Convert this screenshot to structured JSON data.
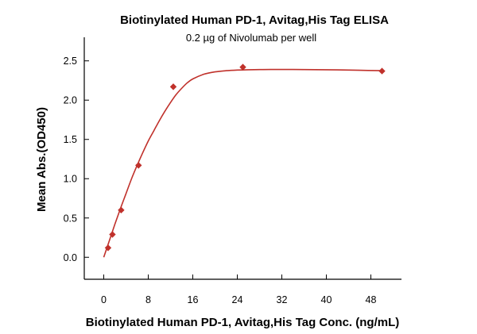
{
  "chart_data": {
    "type": "scatter",
    "title": "Biotinylated Human PD-1, Avitag,His Tag ELISA",
    "subtitle": "0.2 µg of Nivolumab per well",
    "xlabel": "Biotinylated Human PD-1, Avitag,His Tag Conc. (ng/mL)",
    "ylabel": "Mean Abs.(OD450)",
    "xlim": [
      -3.5,
      53.5
    ],
    "ylim": [
      -0.28,
      2.8
    ],
    "x_ticks": [
      0,
      8,
      16,
      24,
      32,
      40,
      48
    ],
    "y_ticks": [
      0.0,
      0.5,
      1.0,
      1.5,
      2.0,
      2.5
    ],
    "x_tick_labels": [
      "0",
      "8",
      "16",
      "24",
      "32",
      "40",
      "48"
    ],
    "y_tick_labels": [
      "0.0",
      "0.5",
      "1.0",
      "1.5",
      "2.0",
      "2.5"
    ],
    "grid": false,
    "marker_color": "#c0312b",
    "line_color": "#c0312b",
    "points": {
      "x": [
        0.78,
        1.56,
        3.13,
        6.25,
        12.5,
        25,
        50
      ],
      "y": [
        0.12,
        0.29,
        0.6,
        1.17,
        2.17,
        2.42,
        2.37
      ]
    },
    "fit_curve": {
      "x": [
        0,
        1,
        2,
        3,
        4,
        5,
        6,
        7,
        8,
        9,
        10,
        11,
        12,
        13,
        14,
        15,
        16,
        18,
        20,
        22,
        24,
        26,
        28,
        30,
        34,
        38,
        42,
        46,
        50
      ],
      "y": [
        0.0,
        0.21,
        0.42,
        0.62,
        0.81,
        1.0,
        1.17,
        1.33,
        1.48,
        1.61,
        1.74,
        1.86,
        1.97,
        2.07,
        2.15,
        2.22,
        2.27,
        2.33,
        2.36,
        2.375,
        2.383,
        2.387,
        2.389,
        2.39,
        2.39,
        2.388,
        2.385,
        2.38,
        2.375
      ]
    }
  }
}
